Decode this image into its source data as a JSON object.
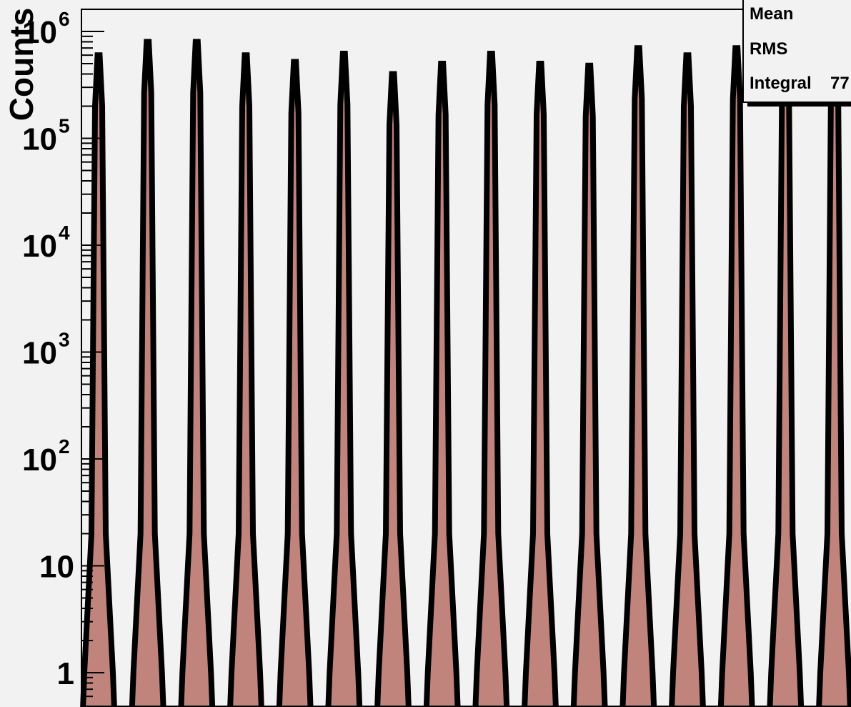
{
  "chart_data": {
    "type": "area",
    "title": "",
    "xlabel": "",
    "ylabel": "Counts",
    "y_scale": "log",
    "ylim": [
      0.5,
      1600000
    ],
    "y_ticks": [
      {
        "value": 1,
        "label": "1",
        "exp": ""
      },
      {
        "value": 10,
        "label": "10",
        "exp": ""
      },
      {
        "value": 100,
        "label": "10",
        "exp": "2"
      },
      {
        "value": 1000,
        "label": "10",
        "exp": "3"
      },
      {
        "value": 10000,
        "label": "10",
        "exp": "4"
      },
      {
        "value": 100000,
        "label": "10",
        "exp": "5"
      },
      {
        "value": 1000000,
        "label": "10",
        "exp": "6"
      }
    ],
    "fill_color": "#c0847c",
    "line_color": "#000000",
    "background": "#f2f2f2",
    "peaks": [
      {
        "index": 1,
        "height": 600000
      },
      {
        "index": 2,
        "height": 800000
      },
      {
        "index": 3,
        "height": 800000
      },
      {
        "index": 4,
        "height": 600000
      },
      {
        "index": 5,
        "height": 520000
      },
      {
        "index": 6,
        "height": 620000
      },
      {
        "index": 7,
        "height": 400000
      },
      {
        "index": 8,
        "height": 500000
      },
      {
        "index": 9,
        "height": 620000
      },
      {
        "index": 10,
        "height": 500000
      },
      {
        "index": 11,
        "height": 480000
      },
      {
        "index": 12,
        "height": 700000
      },
      {
        "index": 13,
        "height": 600000
      },
      {
        "index": 14,
        "height": 700000
      },
      {
        "index": 15,
        "height": 650000
      },
      {
        "index": 16,
        "height": 900000
      }
    ]
  },
  "stats_box": {
    "labels": [
      "Mean",
      "RMS",
      "Integral"
    ],
    "integral_value_visible": "77"
  }
}
